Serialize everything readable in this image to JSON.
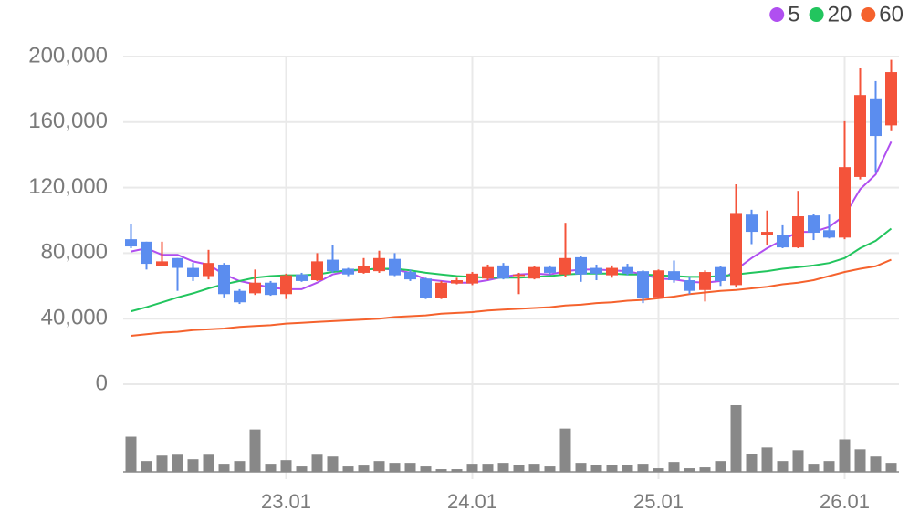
{
  "chart_data": {
    "type": "candlestick",
    "categories": [
      null,
      null,
      null,
      null,
      null,
      null,
      null,
      null,
      null,
      null,
      "23.01",
      null,
      null,
      null,
      null,
      null,
      null,
      null,
      null,
      null,
      null,
      null,
      "24.01",
      null,
      null,
      null,
      null,
      null,
      null,
      null,
      null,
      null,
      null,
      null,
      "25.01",
      null,
      null,
      null,
      null,
      null,
      null,
      null,
      null,
      null,
      null,
      null,
      "26.01",
      null,
      null,
      null
    ],
    "open": [
      88500,
      87000,
      72000,
      77000,
      71000,
      66000,
      73000,
      57000,
      55500,
      62000,
      55000,
      67000,
      63500,
      76000,
      70500,
      68000,
      69000,
      76500,
      68500,
      64500,
      52500,
      61500,
      61500,
      64500,
      72500,
      66000,
      64500,
      71500,
      67000,
      77500,
      71000,
      66500,
      71500,
      69000,
      53000,
      69000,
      63500,
      57500,
      71500,
      60500,
      103500,
      91000,
      91000,
      83500,
      103000,
      94000,
      89500,
      126500,
      174500,
      158000
    ],
    "high": [
      97500,
      87000,
      87000,
      77000,
      74000,
      82000,
      74000,
      58000,
      70000,
      63000,
      67500,
      68000,
      80000,
      85000,
      71000,
      77000,
      81500,
      80000,
      70000,
      65000,
      63000,
      65000,
      68500,
      73000,
      74000,
      68000,
      72000,
      72500,
      98500,
      78000,
      73000,
      72500,
      73500,
      69500,
      70000,
      75500,
      65500,
      69500,
      72000,
      122000,
      106500,
      106000,
      97000,
      118000,
      104000,
      103500,
      160500,
      193000,
      185000,
      198000
    ],
    "low": [
      83000,
      70000,
      72000,
      57000,
      63000,
      64000,
      53000,
      49000,
      54500,
      54000,
      52000,
      62500,
      63000,
      68000,
      66000,
      67500,
      68000,
      66000,
      63000,
      52000,
      52000,
      61000,
      60500,
      63500,
      64000,
      55000,
      64000,
      67000,
      65500,
      62500,
      63500,
      65000,
      66500,
      49500,
      52500,
      62000,
      55000,
      50500,
      60000,
      59000,
      85500,
      85000,
      83000,
      83000,
      88000,
      89000,
      88500,
      125000,
      129000,
      155000
    ],
    "close": [
      84100,
      73500,
      75000,
      71000,
      65500,
      74000,
      55000,
      50000,
      62000,
      54500,
      66500,
      63000,
      75000,
      69000,
      67000,
      72000,
      77000,
      66500,
      64000,
      52500,
      62000,
      63500,
      67500,
      71500,
      64500,
      67000,
      71500,
      68000,
      77000,
      67000,
      67500,
      71000,
      67500,
      52500,
      69500,
      63500,
      57000,
      68500,
      63000,
      104500,
      93000,
      93000,
      83500,
      102500,
      92500,
      89500,
      132500,
      176500,
      151500,
      190500
    ],
    "up_color": "#f4533a",
    "down_color": "#5b8def",
    "moving_averages": [
      {
        "name": "5",
        "color": "#b04ff0",
        "values": [
          81000,
          83000,
          79000,
          79000,
          75000,
          73000,
          67000,
          63000,
          61000,
          59000,
          58000,
          58000,
          62000,
          67000,
          69000,
          70000,
          70500,
          70000,
          68000,
          64000,
          63000,
          62000,
          62000,
          63500,
          65500,
          67000,
          67500,
          67000,
          69000,
          70000,
          70000,
          69500,
          69000,
          67000,
          64500,
          64000,
          62500,
          62000,
          63000,
          70000,
          77000,
          83000,
          88000,
          93000,
          93000,
          96000,
          103000,
          119000,
          128000,
          148000
        ]
      },
      {
        "name": "20",
        "color": "#22c55e",
        "values": [
          44500,
          47000,
          50000,
          53000,
          55500,
          58500,
          61000,
          63000,
          65000,
          66000,
          66500,
          66500,
          67000,
          68500,
          69500,
          70000,
          70500,
          70500,
          69500,
          68000,
          67000,
          66000,
          65500,
          65000,
          65000,
          65000,
          65500,
          66000,
          67000,
          67500,
          67500,
          67500,
          67000,
          67000,
          66500,
          66000,
          65500,
          65500,
          66000,
          67000,
          68000,
          69000,
          70500,
          71500,
          72500,
          74000,
          77000,
          83000,
          87500,
          95000
        ]
      },
      {
        "name": "60",
        "color": "#f5622d",
        "values": [
          29500,
          30500,
          31500,
          32000,
          33000,
          33500,
          34000,
          35000,
          35500,
          36000,
          37000,
          37500,
          38000,
          38500,
          39000,
          39500,
          40000,
          41000,
          41500,
          42000,
          43000,
          43500,
          44000,
          45000,
          45500,
          46000,
          46500,
          47000,
          48000,
          48500,
          49500,
          50000,
          51000,
          51500,
          52500,
          53500,
          55000,
          56000,
          57000,
          57500,
          58500,
          59500,
          61000,
          62000,
          63500,
          66000,
          68500,
          70500,
          72000,
          76000
        ]
      }
    ],
    "volume": {
      "color": "#888888",
      "ylim": [
        0,
        75
      ],
      "values": [
        39,
        12,
        18,
        19,
        14,
        19,
        9,
        12,
        47,
        9,
        13,
        6,
        19,
        17,
        6,
        7,
        12,
        10,
        10,
        6,
        3,
        3,
        9,
        9,
        10,
        8,
        9,
        6,
        48,
        10,
        8,
        8,
        8,
        9,
        4,
        11,
        4,
        5,
        12,
        74,
        20,
        27,
        12,
        24,
        9,
        12,
        36,
        25,
        17,
        10
      ]
    },
    "ylim": [
      0,
      200000
    ],
    "yticks": [
      0,
      {
        "value": 40000,
        "label": "40,000"
      },
      {
        "value": 80000,
        "label": "80,000"
      },
      {
        "value": 120000,
        "label": "120,000"
      },
      {
        "value": 160000,
        "label": "160,000"
      },
      {
        "value": 200000,
        "label": "200,000"
      }
    ],
    "grid": true,
    "legend": "top-right"
  }
}
